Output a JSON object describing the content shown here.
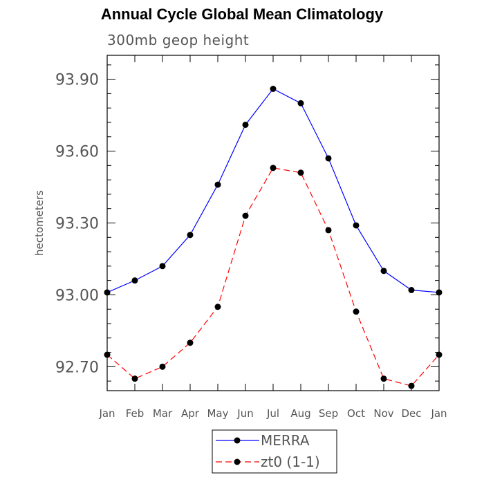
{
  "chart_data": {
    "type": "line",
    "title": "Annual Cycle Global Mean Climatology",
    "subtitle": "300mb geop height",
    "ylabel": "hectometers",
    "xlabel": "",
    "categories": [
      "Jan",
      "Feb",
      "Mar",
      "Apr",
      "May",
      "Jun",
      "Jul",
      "Aug",
      "Sep",
      "Oct",
      "Nov",
      "Dec",
      "Jan"
    ],
    "ylim": [
      92.6,
      94.0
    ],
    "yticks": [
      92.7,
      93.0,
      93.3,
      93.6,
      93.9
    ],
    "ytick_labels": [
      "92.70",
      "93.00",
      "93.30",
      "93.60",
      "93.90"
    ],
    "grid": false,
    "legend_position": "bottom-center",
    "series": [
      {
        "name": "MERRA",
        "color": "#0000ff",
        "dash": "solid",
        "marker": "filled-circle",
        "values": [
          93.01,
          93.06,
          93.12,
          93.25,
          93.46,
          93.71,
          93.86,
          93.8,
          93.57,
          93.29,
          93.1,
          93.02,
          93.01
        ]
      },
      {
        "name": "zt0 (1-1)",
        "color": "#ff0000",
        "dash": "dashed",
        "marker": "filled-circle",
        "values": [
          92.75,
          92.65,
          92.7,
          92.8,
          92.95,
          93.33,
          93.53,
          93.51,
          93.27,
          92.93,
          92.65,
          92.62,
          92.75
        ]
      }
    ]
  }
}
